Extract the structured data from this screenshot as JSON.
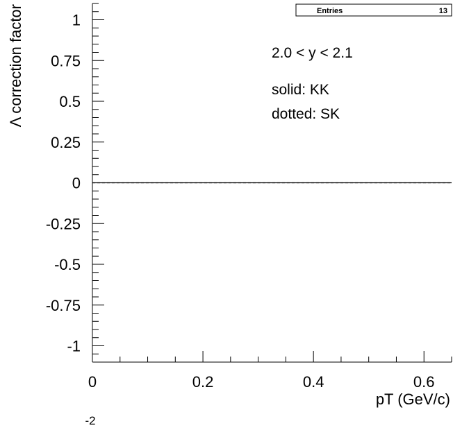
{
  "chart_data": {
    "type": "line",
    "title": "",
    "xlabel": "pT (GeV/c)",
    "ylabel": "Λ correction factor",
    "xlim": [
      0,
      0.65
    ],
    "ylim": [
      -1.1,
      1.1
    ],
    "x_ticks": [
      0,
      0.2,
      0.4,
      0.6
    ],
    "x_tick_labels": [
      "0",
      "0.2",
      "0.4",
      "0.6"
    ],
    "y_ticks": [
      1,
      0.75,
      0.5,
      0.25,
      0,
      -0.25,
      -0.5,
      -0.75,
      -1
    ],
    "y_tick_labels": [
      "1",
      "0.75",
      "0.5",
      "0.25",
      "0",
      "-0.25",
      "-0.5",
      "-0.75",
      "-1"
    ],
    "x_exponent_label": "-2",
    "grid": false,
    "series": [
      {
        "name": "KK",
        "style": "solid",
        "color": "#000000",
        "x": [
          0,
          0.65
        ],
        "y": [
          0,
          0
        ]
      },
      {
        "name": "SK",
        "style": "dotted",
        "color": "#000000",
        "x": [
          0,
          0.65
        ],
        "y": [
          0,
          0
        ]
      }
    ],
    "annotations": {
      "rapidity": "2.0 < y < 2.1",
      "solid": "solid: KK",
      "dotted": "dotted: SK"
    },
    "stats_box": {
      "label": "Entries",
      "value": "13"
    }
  }
}
